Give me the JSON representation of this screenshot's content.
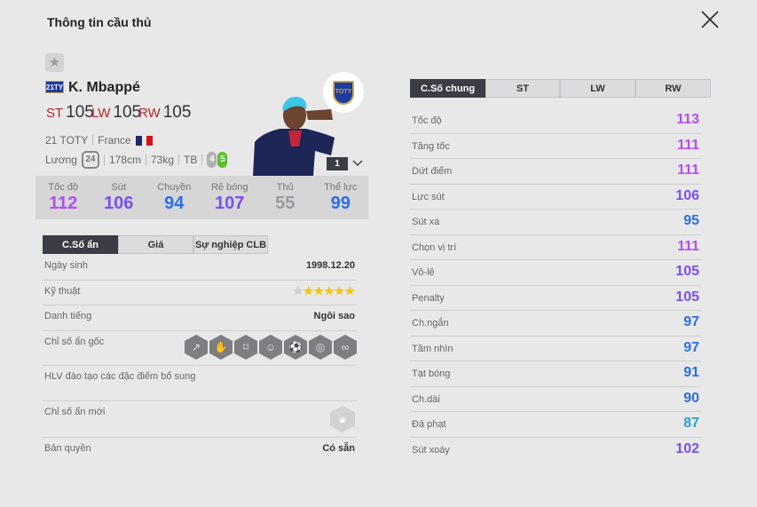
{
  "header": {
    "title": "Thông tin cầu thủ",
    "close_icon": "close-icon"
  },
  "player": {
    "season_badge": "21TY",
    "name": "K. Mbappé",
    "positions": [
      {
        "pos": "ST",
        "ovr": "105"
      },
      {
        "pos": "LW",
        "ovr": "105"
      },
      {
        "pos": "RW",
        "ovr": "105"
      }
    ],
    "season": "21 TOTY",
    "nation": "France",
    "salary_label": "Lương",
    "salary": "24",
    "height": "178cm",
    "weight": "73kg",
    "body": "TB",
    "weak_foot": "4",
    "strong_foot": "5",
    "upgrade_level": "1",
    "club_badge": "TOTY"
  },
  "summary_stats": [
    {
      "label": "Tốc độ",
      "value": "112",
      "color": "#b24ff0"
    },
    {
      "label": "Sút",
      "value": "106",
      "color": "#7a4ff0"
    },
    {
      "label": "Chuyền",
      "value": "94",
      "color": "#2a6ee6"
    },
    {
      "label": "Rê bóng",
      "value": "107",
      "color": "#7a4ff0"
    },
    {
      "label": "Thủ",
      "value": "55",
      "color": "#9a9aa0"
    },
    {
      "label": "Thể lực",
      "value": "99",
      "color": "#2a6ee6"
    }
  ],
  "left_tabs": [
    "C.Số ẩn",
    "Giá",
    "Sự nghiệp CLB"
  ],
  "details": {
    "birth_label": "Ngày sinh",
    "birth": "1998.12.20",
    "skill_label": "Kỹ thuật",
    "skill_stars": 5,
    "skill_max": 6,
    "rep_label": "Danh tiếng",
    "rep": "Ngôi sao",
    "traits_label": "Chỉ số ẩn gốc",
    "traits": [
      "finesse-shot-icon",
      "power-header-icon",
      "long-shot-icon",
      "flair-icon",
      "speed-dribbler-icon",
      "technical-dribbler-icon",
      "outside-foot-icon"
    ],
    "coach_label": "HLV đào tạo các đặc điểm bổ sung",
    "new_label": "Chỉ số ẩn mới",
    "license_label": "Bản quyền",
    "license": "Có sẵn"
  },
  "right_tabs": [
    "C.Số chung",
    "ST",
    "LW",
    "RW"
  ],
  "attributes": [
    {
      "label": "Tốc độ",
      "value": "113",
      "color": "#b24ff0"
    },
    {
      "label": "Tăng tốc",
      "value": "111",
      "color": "#b24ff0"
    },
    {
      "label": "Dứt điểm",
      "value": "111",
      "color": "#b24ff0"
    },
    {
      "label": "Lực sút",
      "value": "106",
      "color": "#7a4ff0"
    },
    {
      "label": "Sút xa",
      "value": "95",
      "color": "#2a6ee6"
    },
    {
      "label": "Chọn vị trí",
      "value": "111",
      "color": "#b24ff0"
    },
    {
      "label": "Vô-lê",
      "value": "105",
      "color": "#7a4ff0"
    },
    {
      "label": "Penalty",
      "value": "105",
      "color": "#7a4ff0"
    },
    {
      "label": "Ch.ngắn",
      "value": "97",
      "color": "#2a6ee6"
    },
    {
      "label": "Tầm nhìn",
      "value": "97",
      "color": "#2a6ee6"
    },
    {
      "label": "Tạt bóng",
      "value": "91",
      "color": "#2a6ee6"
    },
    {
      "label": "Ch.dài",
      "value": "90",
      "color": "#2a6ee6"
    },
    {
      "label": "Đá phạt",
      "value": "87",
      "color": "#2e9ed8"
    },
    {
      "label": "Sút xoáy",
      "value": "102",
      "color": "#7a4ff0"
    }
  ]
}
